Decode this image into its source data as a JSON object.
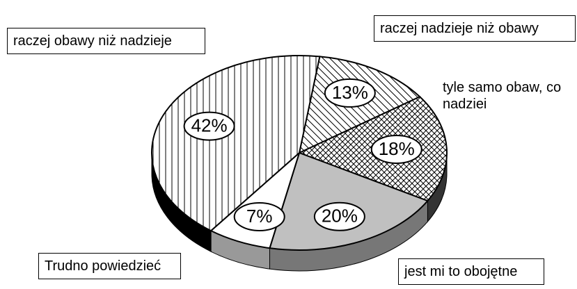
{
  "chart_data": {
    "type": "pie",
    "categories": [
      "raczej nadzieje niż obawy",
      "tyle samo obaw, co nadziei",
      "jest mi to obojętne",
      "Trudno powiedzieć",
      "raczej obawy niż nadzieje"
    ],
    "values": [
      13,
      18,
      20,
      7,
      42
    ],
    "value_labels": [
      "13%",
      "18%",
      "20%",
      "7%",
      "42%"
    ],
    "colors": [
      "#ffffff",
      "#ffffff",
      "#c0c0c0",
      "#ffffff",
      "#ffffff"
    ],
    "patterns": [
      "diagonal",
      "crosshatch",
      "solid",
      "solid",
      "vertical"
    ]
  }
}
